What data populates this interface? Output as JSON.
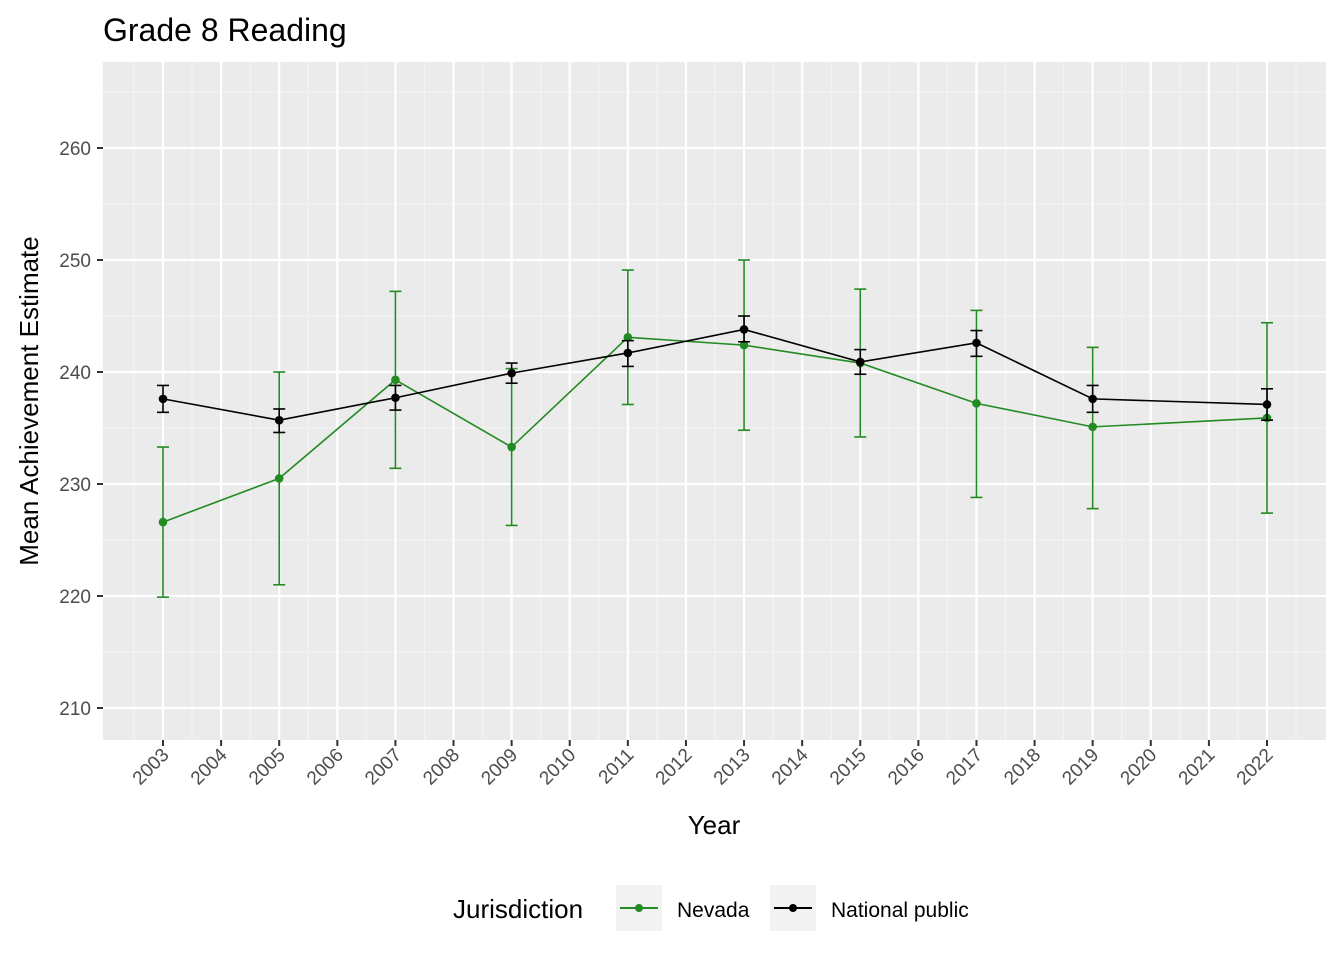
{
  "chart_data": {
    "type": "line",
    "title": "Grade 8 Reading",
    "xlabel": "Year",
    "ylabel": "Mean Achievement Estimate",
    "x_ticks": [
      "2003",
      "2004",
      "2005",
      "2006",
      "2007",
      "2008",
      "2009",
      "2010",
      "2011",
      "2012",
      "2013",
      "2014",
      "2015",
      "2016",
      "2017",
      "2018",
      "2019",
      "2020",
      "2021",
      "2022"
    ],
    "xlim": [
      2002,
      2023
    ],
    "ylim": [
      207,
      268
    ],
    "y_ticks": [
      210,
      220,
      230,
      240,
      250,
      260
    ],
    "grid": true,
    "legend": {
      "title": "Jurisdiction",
      "position": "bottom",
      "entries": [
        "Nevada",
        "National public"
      ]
    },
    "series": [
      {
        "name": "Nevada",
        "color": "#228b22",
        "x": [
          2003,
          2005,
          2007,
          2009,
          2011,
          2013,
          2015,
          2017,
          2019,
          2022
        ],
        "y": [
          226.6,
          230.5,
          239.3,
          233.3,
          243.1,
          242.4,
          240.8,
          237.2,
          235.1,
          235.9
        ],
        "lower": [
          219.9,
          221.0,
          231.4,
          226.3,
          237.1,
          234.8,
          234.2,
          228.8,
          227.8,
          227.4
        ],
        "upper": [
          233.3,
          240.0,
          247.2,
          240.3,
          249.1,
          250.0,
          247.4,
          245.5,
          242.2,
          244.4
        ]
      },
      {
        "name": "National public",
        "color": "#000000",
        "x": [
          2003,
          2005,
          2007,
          2009,
          2011,
          2013,
          2015,
          2017,
          2019,
          2022
        ],
        "y": [
          237.6,
          235.7,
          237.7,
          239.9,
          241.7,
          243.8,
          240.9,
          242.6,
          237.6,
          237.1
        ],
        "lower": [
          236.4,
          234.6,
          236.6,
          239.0,
          240.5,
          242.7,
          239.8,
          241.4,
          236.4,
          235.7
        ],
        "upper": [
          238.8,
          236.7,
          238.8,
          240.8,
          242.8,
          245.0,
          242.0,
          243.7,
          238.8,
          238.5
        ]
      }
    ]
  }
}
